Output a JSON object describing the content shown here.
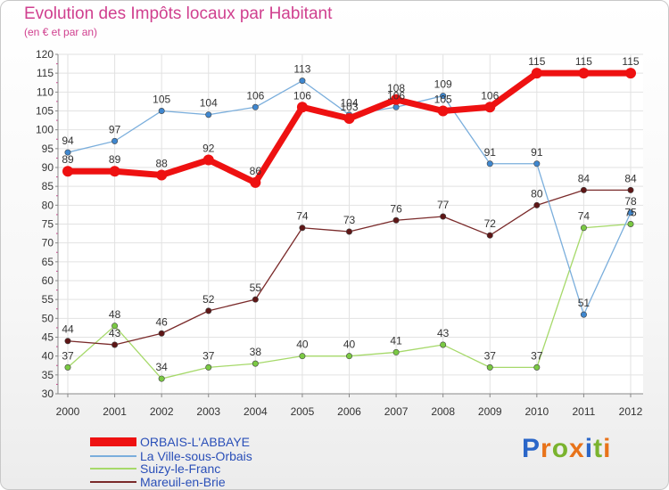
{
  "header": {
    "title": "Evolution des Impôts locaux par Habitant",
    "subtitle": "(en € et par an)"
  },
  "brand": {
    "letters": [
      "P",
      "r",
      "o",
      "x",
      "i",
      "t",
      "i"
    ],
    "colors": [
      "#2a66c8",
      "#e8731a",
      "#7ab32e",
      "#e8731a",
      "#2a66c8",
      "#7ab32e",
      "#e8731a"
    ]
  },
  "chart_data": {
    "type": "line",
    "title": "Evolution des Impôts locaux par Habitant",
    "subtitle": "(en € et par an)",
    "xlabel": "",
    "ylabel": "",
    "categories": [
      "2000",
      "2001",
      "2002",
      "2003",
      "2004",
      "2005",
      "2006",
      "2007",
      "2008",
      "2009",
      "2010",
      "2011",
      "2012"
    ],
    "ylim": [
      30,
      120
    ],
    "yticks": [
      30,
      35,
      40,
      45,
      50,
      55,
      60,
      65,
      70,
      75,
      80,
      85,
      90,
      95,
      100,
      105,
      110,
      115,
      120
    ],
    "grid": true,
    "legend": "bottom-left",
    "series": [
      {
        "name": "Suizy-le-Franc",
        "color": "#a6d96a",
        "marker": "#7ac943",
        "values": [
          37,
          48,
          34,
          37,
          38,
          40,
          40,
          41,
          43,
          37,
          37,
          74,
          75
        ]
      },
      {
        "name": "Mareuil-en-Brie",
        "color": "#7a2a2a",
        "marker": "#5e1616",
        "values": [
          44,
          43,
          46,
          52,
          55,
          74,
          73,
          76,
          77,
          72,
          80,
          84,
          84
        ]
      },
      {
        "name": "La Ville-sous-Orbais",
        "color": "#7aaedc",
        "marker": "#3f87cf",
        "values": [
          94,
          97,
          105,
          104,
          106,
          113,
          104,
          106,
          109,
          91,
          91,
          51,
          78
        ]
      },
      {
        "name": "ORBAIS-L'ABBAYE",
        "color": "#ee1111",
        "marker": "#ee1111",
        "values": [
          89,
          89,
          88,
          92,
          86,
          106,
          103,
          108,
          105,
          106,
          115,
          115,
          115
        ]
      }
    ],
    "legend_order": [
      "ORBAIS-L'ABBAYE",
      "La Ville-sous-Orbais",
      "Suizy-le-Franc",
      "Mareuil-en-Brie"
    ]
  }
}
